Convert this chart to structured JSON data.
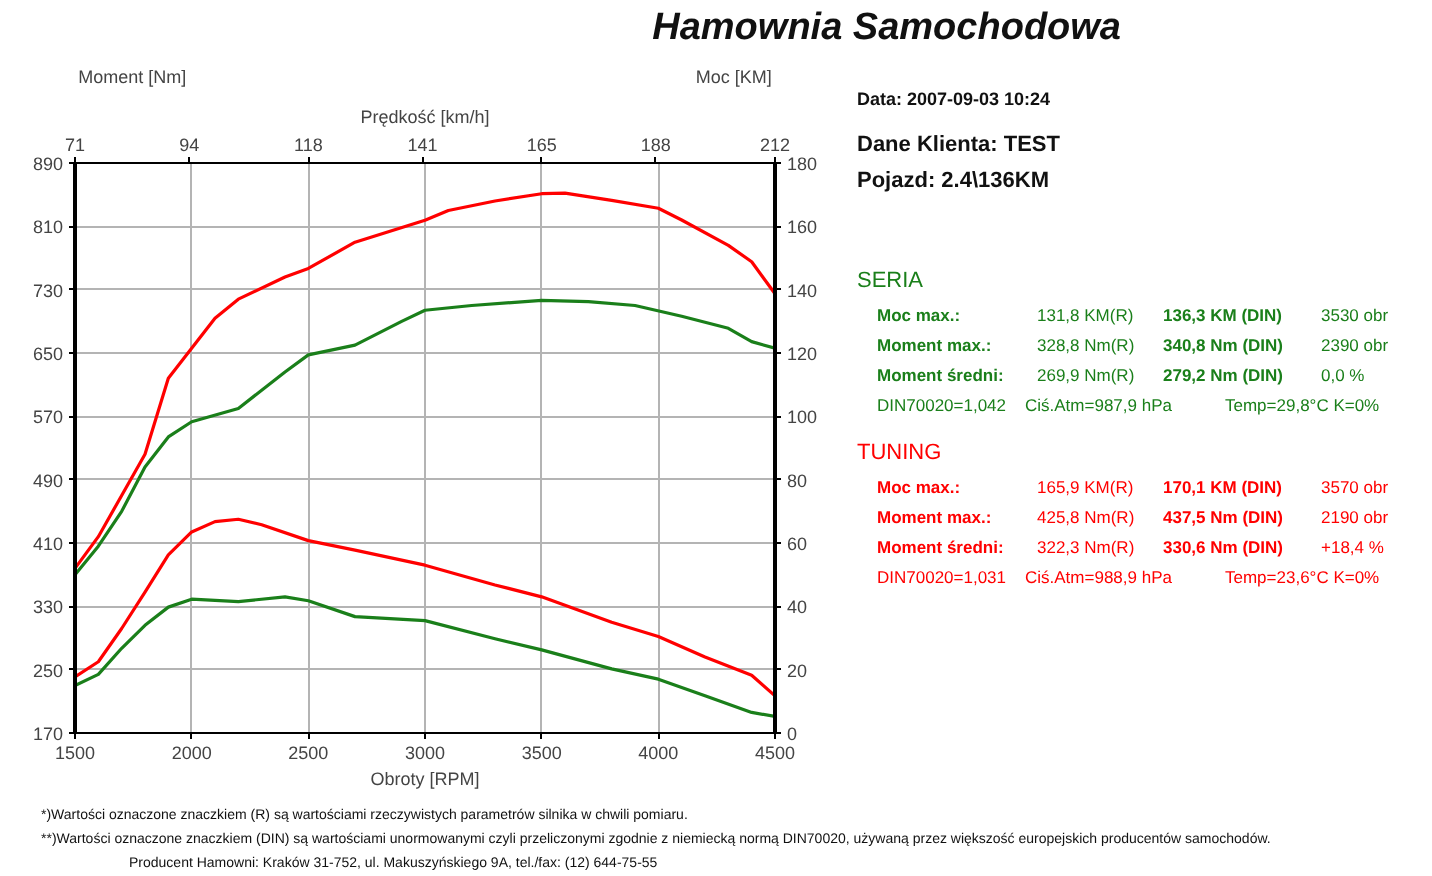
{
  "chart_data": {
    "type": "line",
    "title": "Hamownia Samochodowa",
    "xlabel": "Obroty [RPM]",
    "ylabel": "Moment [Nm]",
    "y2label": "Moc [KM]",
    "x2label": "Prędkość [km/h]",
    "xlim": [
      1500,
      4500
    ],
    "xticks": [
      1500,
      2000,
      2500,
      3000,
      3500,
      4000,
      4500
    ],
    "x2lim": [
      71,
      212
    ],
    "x2ticks": [
      71,
      94,
      118,
      141,
      165,
      188,
      212
    ],
    "ylim": [
      170,
      890
    ],
    "yticks": [
      170,
      250,
      330,
      410,
      490,
      570,
      650,
      730,
      810,
      890
    ],
    "y2lim": [
      0,
      180
    ],
    "y2ticks": [
      0,
      20,
      40,
      60,
      80,
      100,
      120,
      140,
      160,
      180
    ],
    "grid": true,
    "line_style": "solid",
    "series": [
      {
        "color": "#ff0000",
        "axis": "y2",
        "x": [
          1500,
          1600,
          1700,
          1800,
          1900,
          2000,
          2100,
          2200,
          2400,
          2500,
          2700,
          3000,
          3100,
          3300,
          3500,
          3600,
          3800,
          4000,
          4100,
          4300,
          4400,
          4500
        ],
        "values": [
          52,
          62,
          75,
          88,
          112,
          121.5,
          131,
          137,
          144,
          146.7,
          155,
          161.9,
          165,
          168,
          170.3,
          170.5,
          168.2,
          165.7,
          162,
          154,
          148.8,
          138.7
        ]
      },
      {
        "color": "#1a7f1a",
        "axis": "y2",
        "x": [
          1500,
          1600,
          1700,
          1800,
          1900,
          2000,
          2200,
          2400,
          2500,
          2700,
          2900,
          3000,
          3200,
          3500,
          3700,
          3900,
          4100,
          4300,
          4400,
          4500
        ],
        "values": [
          50,
          59,
          70,
          84,
          93.5,
          98.3,
          102.5,
          114,
          119.4,
          122.5,
          130,
          133.5,
          135,
          136.6,
          136.2,
          135,
          131.6,
          127.8,
          123.6,
          121.5
        ]
      },
      {
        "color": "#ff0000",
        "x": [
          1500,
          1600,
          1700,
          1800,
          1900,
          2000,
          2100,
          2200,
          2300,
          2500,
          2700,
          3000,
          3300,
          3500,
          3800,
          4000,
          4200,
          4400,
          4500
        ],
        "values": [
          241,
          260,
          302,
          348,
          395,
          424,
          437,
          440,
          433,
          413,
          401,
          382,
          357,
          342,
          310,
          292,
          266,
          243,
          217
        ]
      },
      {
        "color": "#1a7f1a",
        "x": [
          1500,
          1600,
          1700,
          1800,
          1900,
          2000,
          2200,
          2400,
          2500,
          2700,
          3000,
          3300,
          3500,
          3800,
          4000,
          4200,
          4400,
          4500
        ],
        "values": [
          230,
          244,
          277,
          306,
          329,
          339,
          336,
          342,
          337,
          317,
          312,
          289,
          275,
          251,
          238,
          217,
          196,
          191
        ]
      }
    ],
    "annotations": [
      "Data: 2007-09-03  10:24",
      "Dane Klienta: TEST",
      "Pojazd: 2.4\\136KM",
      "SERIA",
      "Moc max.:\t131,8 KM(R)\t136,3 KM (DIN)\t3530 obr",
      "Moment max.:\t328,8 Nm(R)\t340,8 Nm (DIN)\t2390 obr",
      "Moment średni:\t269,9 Nm(R)\t279,2 Nm (DIN)\t0,0 %",
      "DIN70020=1,042\tCiś.Atm=987,9 hPa\tTemp=29,8°C  K=0%",
      "TUNING",
      "Moc max.:\t165,9 KM(R)\t170,1 KM (DIN)\t3570 obr",
      "Moment max.:\t425,8 Nm(R)\t437,5 Nm (DIN)\t2190 obr",
      "Moment średni:\t322,3 Nm(R)\t330,6 Nm (DIN)\t+18,4 %",
      "DIN70020=1,031\tCiś.Atm=988,9 hPa\tTemp=23,6°C  K=0%",
      "*)Wartości oznaczone znaczkiem (R) są wartościami rzeczywistych parametrów silnika w chwili pomiaru.",
      "**)Wartości oznaczone znaczkiem (DIN) są wartościami unormowanymi czyli przeliczonymi zgodnie z niemiecką normą DIN70020, używaną przez większość europejskich producentów samochodów.",
      "Producent Hamowni: Kraków 31-752, ul. Makuszyńskiego 9A, tel./fax: (12) 644-75-55"
    ]
  }
}
